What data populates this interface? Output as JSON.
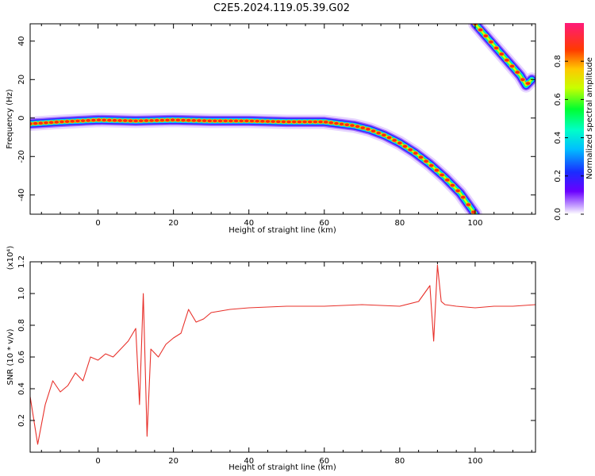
{
  "figure_title": "C2E5.2024.119.05.39.G02",
  "chart_data": [
    {
      "type": "heatmap",
      "xlabel": "Height of straight line (km)",
      "ylabel": "Frequency (Hz)",
      "xlim": [
        -18,
        116
      ],
      "ylim": [
        -50,
        49
      ],
      "x_ticks": [
        0,
        20,
        40,
        60,
        80,
        100
      ],
      "y_ticks": [
        -40,
        -20,
        0,
        20,
        40
      ],
      "colorbar": {
        "label": "Normalized spectral amplitude",
        "range": [
          0,
          1
        ],
        "ticks": [
          0.0,
          0.2,
          0.4,
          0.6,
          0.8
        ]
      },
      "series": [
        {
          "x": [
            -18,
            -10,
            0,
            10,
            20,
            30,
            40,
            50,
            60,
            64,
            68,
            72,
            76,
            80,
            84,
            88,
            92,
            96,
            100
          ],
          "y": [
            -3,
            -2,
            -1,
            -1.5,
            -1,
            -1.5,
            -1.5,
            -2,
            -2,
            -3,
            -4,
            -6,
            -9,
            -13,
            -18,
            -24,
            -31,
            -39,
            -50
          ]
        },
        {
          "x": [
            100,
            104,
            108,
            112,
            113.5,
            115
          ],
          "y": [
            49,
            40,
            31,
            22,
            17,
            20
          ]
        }
      ]
    },
    {
      "type": "line",
      "xlabel": "Height of straight line (km)",
      "ylabel": "SNR (10 * v/v)",
      "y_multiplier": "(x10⁴)",
      "xlim": [
        -18,
        116
      ],
      "ylim": [
        0,
        1.2
      ],
      "x_ticks": [
        0,
        20,
        40,
        60,
        80,
        100
      ],
      "y_ticks": [
        0.2,
        0.4,
        0.6,
        0.8,
        1.0,
        1.2
      ],
      "series": [
        {
          "color": "#e8302a",
          "x": [
            -18,
            -16,
            -14,
            -12,
            -10,
            -8,
            -6,
            -4,
            -2,
            0,
            2,
            4,
            6,
            8,
            10,
            11,
            12,
            13,
            14,
            16,
            18,
            20,
            22,
            24,
            26,
            28,
            30,
            35,
            40,
            50,
            60,
            70,
            80,
            85,
            88,
            89,
            90,
            91,
            92,
            95,
            100,
            105,
            110,
            116
          ],
          "y": [
            0.35,
            0.05,
            0.3,
            0.45,
            0.38,
            0.42,
            0.5,
            0.45,
            0.6,
            0.58,
            0.62,
            0.6,
            0.65,
            0.7,
            0.78,
            0.3,
            1.0,
            0.1,
            0.65,
            0.6,
            0.68,
            0.72,
            0.75,
            0.9,
            0.82,
            0.84,
            0.88,
            0.9,
            0.91,
            0.92,
            0.92,
            0.93,
            0.92,
            0.95,
            1.05,
            0.7,
            1.18,
            0.95,
            0.93,
            0.92,
            0.91,
            0.92,
            0.92,
            0.93
          ]
        }
      ]
    }
  ]
}
